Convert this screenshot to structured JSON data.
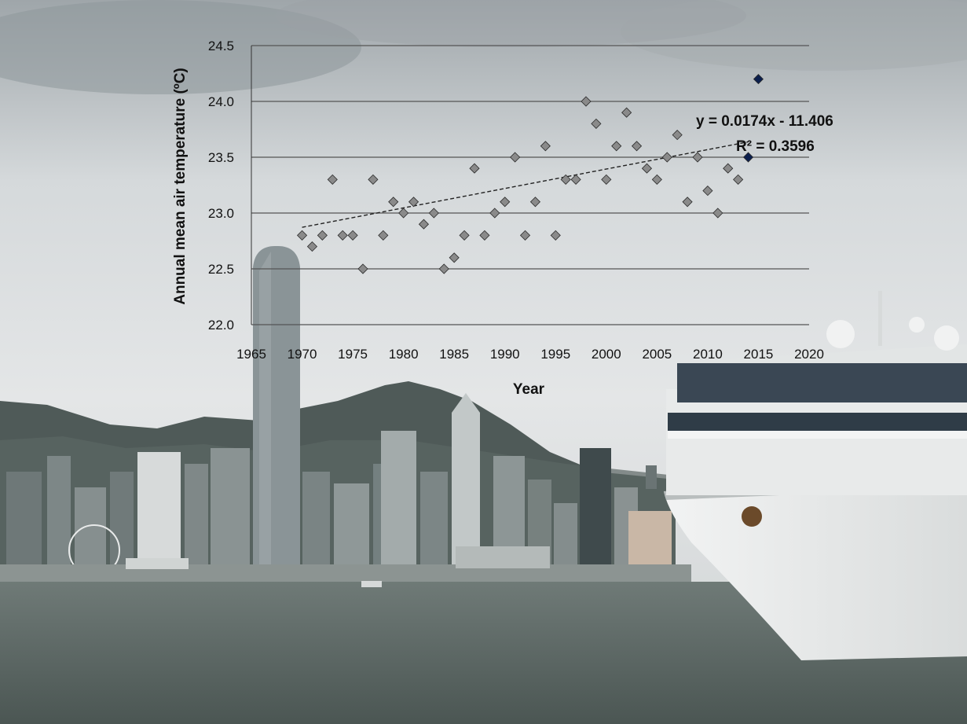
{
  "chart_data": {
    "type": "scatter",
    "title": "",
    "xlabel": "Year",
    "ylabel": "Annual mean air temperature (ºC)",
    "xlim": [
      1965,
      2020
    ],
    "ylim": [
      22.0,
      24.5
    ],
    "x_ticks": [
      "1965",
      "1970",
      "1975",
      "1980",
      "1985",
      "1990",
      "1995",
      "2000",
      "2005",
      "2010",
      "2015",
      "2020"
    ],
    "y_ticks": [
      "22.0",
      "22.5",
      "23.0",
      "23.5",
      "24.0",
      "24.5"
    ],
    "grid": "horizontal",
    "series": [
      {
        "points": [
          [
            1970,
            22.8
          ],
          [
            1971,
            22.7
          ],
          [
            1972,
            22.8
          ],
          [
            1973,
            23.3
          ],
          [
            1974,
            22.8
          ],
          [
            1975,
            22.8
          ],
          [
            1976,
            22.5
          ],
          [
            1977,
            23.3
          ],
          [
            1978,
            22.8
          ],
          [
            1979,
            23.1
          ],
          [
            1980,
            23.0
          ],
          [
            1981,
            23.1
          ],
          [
            1982,
            22.9
          ],
          [
            1983,
            23.0
          ],
          [
            1984,
            22.5
          ],
          [
            1985,
            22.6
          ],
          [
            1986,
            22.8
          ],
          [
            1987,
            23.4
          ],
          [
            1988,
            22.8
          ],
          [
            1989,
            23.0
          ],
          [
            1990,
            23.1
          ],
          [
            1991,
            23.5
          ],
          [
            1992,
            22.8
          ],
          [
            1993,
            23.1
          ],
          [
            1994,
            23.6
          ],
          [
            1995,
            22.8
          ],
          [
            1996,
            23.3
          ],
          [
            1997,
            23.3
          ],
          [
            1998,
            24.0
          ],
          [
            1999,
            23.8
          ],
          [
            2000,
            23.3
          ],
          [
            2001,
            23.6
          ],
          [
            2002,
            23.9
          ],
          [
            2003,
            23.6
          ],
          [
            2004,
            23.4
          ],
          [
            2005,
            23.3
          ],
          [
            2006,
            23.5
          ],
          [
            2007,
            23.7
          ],
          [
            2008,
            23.1
          ],
          [
            2009,
            23.5
          ],
          [
            2010,
            23.2
          ],
          [
            2011,
            23.0
          ],
          [
            2012,
            23.4
          ],
          [
            2013,
            23.3
          ]
        ],
        "color": "#8a8a8a"
      },
      {
        "points": [
          [
            2014,
            23.5
          ],
          [
            2015,
            24.2
          ]
        ],
        "color": "#0b1f4d"
      }
    ],
    "trendline": {
      "slope": 0.0174,
      "intercept": -11.406,
      "x_range": [
        1970,
        2014
      ],
      "equation_label": "y = 0.0174x - 11.406",
      "r2_label": "R² = 0.3596"
    }
  },
  "colors": {
    "sky": "#dfe2e4",
    "hills": "#4a5453",
    "water": "#5d6865",
    "ship": "#eef0f0",
    "gridline": "#555555"
  }
}
